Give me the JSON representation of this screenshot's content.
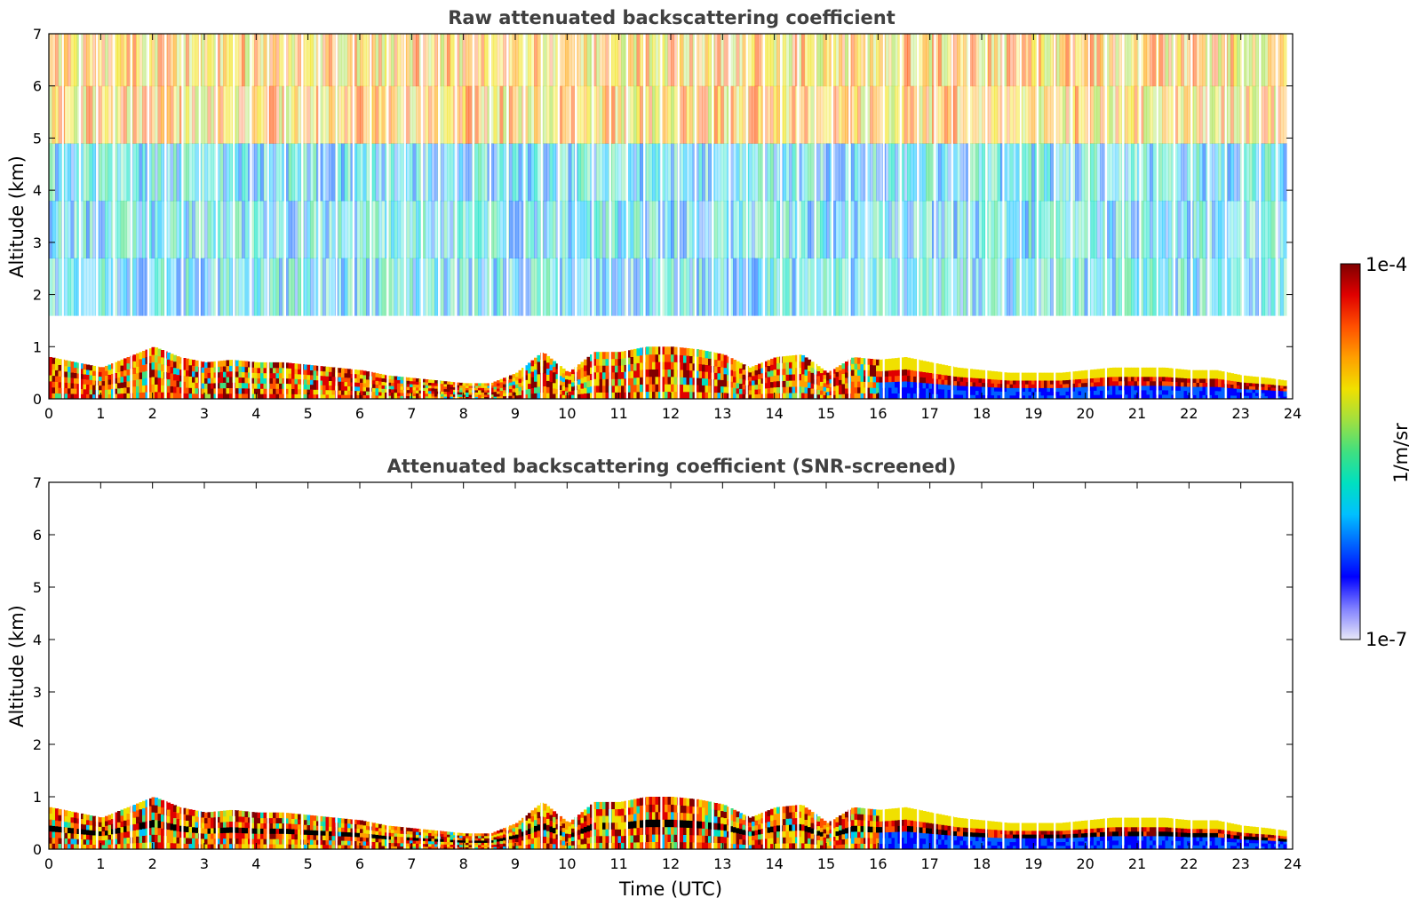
{
  "chart_data": [
    {
      "type": "heatmap",
      "title": "Raw attenuated backscattering coefficient",
      "xlabel": "",
      "ylabel": "Altitude (km)",
      "xlim": [
        0,
        24
      ],
      "ylim": [
        0,
        7
      ],
      "x_ticks": [
        0,
        1,
        2,
        3,
        4,
        5,
        6,
        7,
        8,
        9,
        10,
        11,
        12,
        13,
        14,
        15,
        16,
        17,
        18,
        19,
        20,
        21,
        22,
        23,
        24
      ],
      "y_ticks": [
        0,
        1,
        2,
        3,
        4,
        5,
        6,
        7
      ],
      "mixing_layer_top_km": [
        [
          0.0,
          0.8
        ],
        [
          0.5,
          0.7
        ],
        [
          1.0,
          0.6
        ],
        [
          1.5,
          0.8
        ],
        [
          2.0,
          1.0
        ],
        [
          2.5,
          0.8
        ],
        [
          3.0,
          0.7
        ],
        [
          3.5,
          0.75
        ],
        [
          4.0,
          0.7
        ],
        [
          4.5,
          0.7
        ],
        [
          5.0,
          0.65
        ],
        [
          5.5,
          0.6
        ],
        [
          6.0,
          0.55
        ],
        [
          6.5,
          0.45
        ],
        [
          7.0,
          0.4
        ],
        [
          7.5,
          0.35
        ],
        [
          8.0,
          0.3
        ],
        [
          8.5,
          0.3
        ],
        [
          9.0,
          0.5
        ],
        [
          9.5,
          0.9
        ],
        [
          10.0,
          0.5
        ],
        [
          10.5,
          0.9
        ],
        [
          11.0,
          0.9
        ],
        [
          11.5,
          1.0
        ],
        [
          12.0,
          1.0
        ],
        [
          12.5,
          0.95
        ],
        [
          13.0,
          0.85
        ],
        [
          13.5,
          0.6
        ],
        [
          14.0,
          0.8
        ],
        [
          14.5,
          0.85
        ],
        [
          15.0,
          0.5
        ],
        [
          15.5,
          0.8
        ],
        [
          16.0,
          0.75
        ],
        [
          16.5,
          0.8
        ],
        [
          17.0,
          0.7
        ],
        [
          17.5,
          0.6
        ],
        [
          18.0,
          0.55
        ],
        [
          18.5,
          0.5
        ],
        [
          19.0,
          0.5
        ],
        [
          19.5,
          0.5
        ],
        [
          20.0,
          0.55
        ],
        [
          20.5,
          0.6
        ],
        [
          21.0,
          0.6
        ],
        [
          21.5,
          0.6
        ],
        [
          22.0,
          0.55
        ],
        [
          22.5,
          0.55
        ],
        [
          23.0,
          0.45
        ],
        [
          23.5,
          0.4
        ],
        [
          23.85,
          0.35
        ]
      ]
    },
    {
      "type": "heatmap",
      "title": "Attenuated backscattering coefficient (SNR-screened)",
      "xlabel": "Time (UTC)",
      "ylabel": "Altitude (km)",
      "xlim": [
        0,
        24
      ],
      "ylim": [
        0,
        7
      ],
      "x_ticks": [
        0,
        1,
        2,
        3,
        4,
        5,
        6,
        7,
        8,
        9,
        10,
        11,
        12,
        13,
        14,
        15,
        16,
        17,
        18,
        19,
        20,
        21,
        22,
        23,
        24
      ],
      "y_ticks": [
        0,
        1,
        2,
        3,
        4,
        5,
        6,
        7
      ],
      "mixing_layer_top_km": [
        [
          0.0,
          0.8
        ],
        [
          0.5,
          0.7
        ],
        [
          1.0,
          0.6
        ],
        [
          1.5,
          0.8
        ],
        [
          2.0,
          1.0
        ],
        [
          2.5,
          0.8
        ],
        [
          3.0,
          0.7
        ],
        [
          3.5,
          0.75
        ],
        [
          4.0,
          0.7
        ],
        [
          4.5,
          0.7
        ],
        [
          5.0,
          0.65
        ],
        [
          5.5,
          0.6
        ],
        [
          6.0,
          0.55
        ],
        [
          6.5,
          0.45
        ],
        [
          7.0,
          0.4
        ],
        [
          7.5,
          0.35
        ],
        [
          8.0,
          0.3
        ],
        [
          8.5,
          0.3
        ],
        [
          9.0,
          0.5
        ],
        [
          9.5,
          0.9
        ],
        [
          10.0,
          0.5
        ],
        [
          10.5,
          0.9
        ],
        [
          11.0,
          0.9
        ],
        [
          11.5,
          1.0
        ],
        [
          12.0,
          1.0
        ],
        [
          12.5,
          0.95
        ],
        [
          13.0,
          0.85
        ],
        [
          13.5,
          0.6
        ],
        [
          14.0,
          0.8
        ],
        [
          14.5,
          0.85
        ],
        [
          15.0,
          0.5
        ],
        [
          15.5,
          0.8
        ],
        [
          16.0,
          0.75
        ],
        [
          16.5,
          0.8
        ],
        [
          17.0,
          0.7
        ],
        [
          17.5,
          0.6
        ],
        [
          18.0,
          0.55
        ],
        [
          18.5,
          0.5
        ],
        [
          19.0,
          0.5
        ],
        [
          19.5,
          0.5
        ],
        [
          20.0,
          0.55
        ],
        [
          20.5,
          0.6
        ],
        [
          21.0,
          0.6
        ],
        [
          21.5,
          0.6
        ],
        [
          22.0,
          0.55
        ],
        [
          22.5,
          0.55
        ],
        [
          23.0,
          0.45
        ],
        [
          23.5,
          0.4
        ],
        [
          23.85,
          0.35
        ]
      ]
    }
  ],
  "colorbar": {
    "label": "1/m/sr",
    "max_label": "1e-4",
    "min_label": "1e-7",
    "scale": "log",
    "colors": [
      "#e8e8f8",
      "#8080ff",
      "#0000ff",
      "#0060ff",
      "#00c0ff",
      "#00e0c0",
      "#40e080",
      "#a0e040",
      "#f0e000",
      "#ffa000",
      "#ff5000",
      "#e00000",
      "#800000"
    ]
  }
}
